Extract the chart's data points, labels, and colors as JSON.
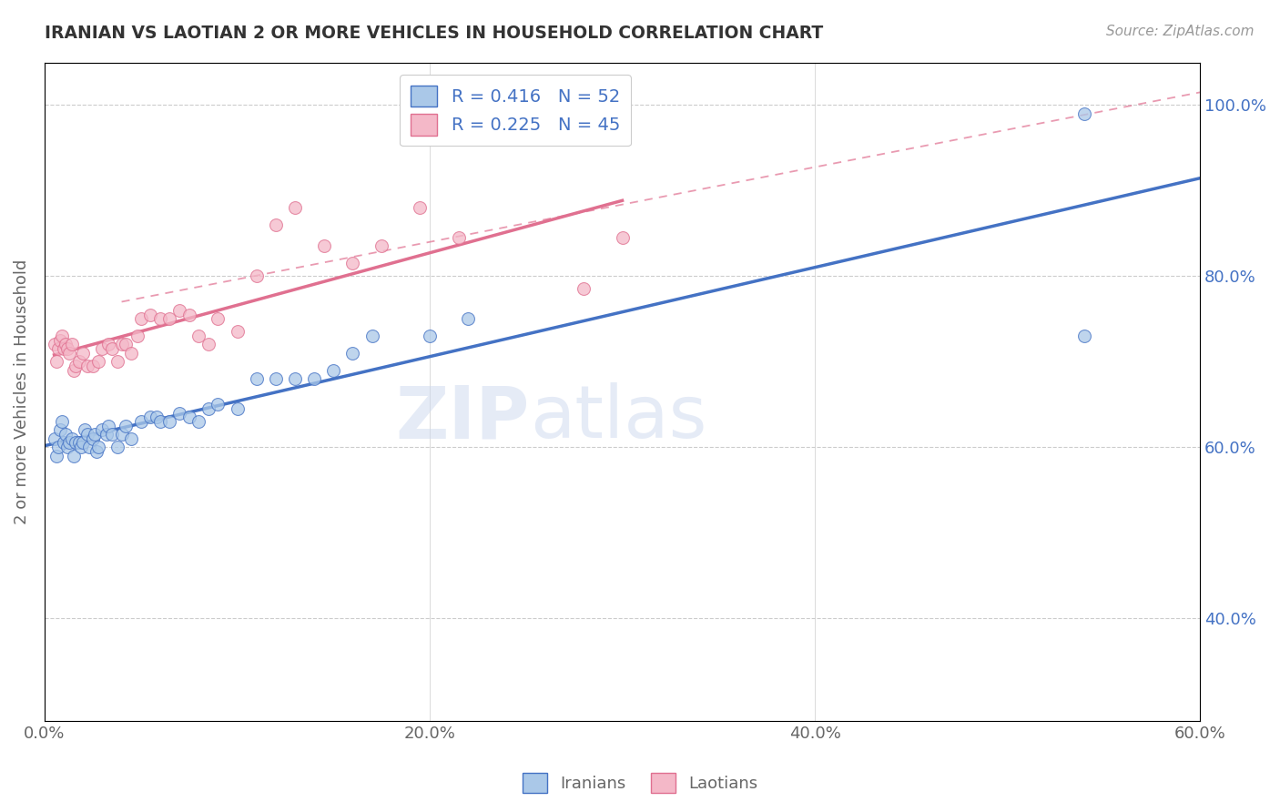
{
  "title": "IRANIAN VS LAOTIAN 2 OR MORE VEHICLES IN HOUSEHOLD CORRELATION CHART",
  "source_text": "Source: ZipAtlas.com",
  "ylabel": "2 or more Vehicles in Household",
  "xlim": [
    0.0,
    0.6
  ],
  "ylim": [
    0.28,
    1.05
  ],
  "xtick_labels": [
    "0.0%",
    "",
    "",
    "",
    "20.0%",
    "",
    "",
    "",
    "40.0%",
    "",
    "",
    "",
    "60.0%"
  ],
  "xtick_vals": [
    0.0,
    0.05,
    0.1,
    0.15,
    0.2,
    0.25,
    0.3,
    0.35,
    0.4,
    0.45,
    0.5,
    0.55,
    0.6
  ],
  "xtick_display": [
    "0.0%",
    "20.0%",
    "40.0%",
    "60.0%"
  ],
  "xtick_display_vals": [
    0.0,
    0.2,
    0.4,
    0.6
  ],
  "ytick_labels": [
    "40.0%",
    "60.0%",
    "80.0%",
    "100.0%"
  ],
  "ytick_vals": [
    0.4,
    0.6,
    0.8,
    1.0
  ],
  "watermark_zip": "ZIP",
  "watermark_atlas": "atlas",
  "legend_R_iranian": "0.416",
  "legend_N_iranian": "52",
  "legend_R_laotian": "0.225",
  "legend_N_laotian": "45",
  "color_iranian": "#aac8e8",
  "color_laotian": "#f4b8c8",
  "line_color_iranian": "#4472c4",
  "line_color_laotian": "#e07090",
  "dashed_line_color": "#e07090",
  "iranian_x": [
    0.005,
    0.006,
    0.007,
    0.008,
    0.009,
    0.01,
    0.011,
    0.012,
    0.013,
    0.014,
    0.015,
    0.016,
    0.018,
    0.019,
    0.02,
    0.021,
    0.022,
    0.023,
    0.025,
    0.026,
    0.027,
    0.028,
    0.03,
    0.032,
    0.033,
    0.035,
    0.038,
    0.04,
    0.042,
    0.045,
    0.05,
    0.055,
    0.058,
    0.06,
    0.065,
    0.07,
    0.075,
    0.08,
    0.085,
    0.09,
    0.1,
    0.11,
    0.12,
    0.13,
    0.14,
    0.15,
    0.16,
    0.17,
    0.2,
    0.22,
    0.54,
    0.54
  ],
  "iranian_y": [
    0.61,
    0.59,
    0.6,
    0.62,
    0.63,
    0.605,
    0.615,
    0.6,
    0.605,
    0.61,
    0.59,
    0.605,
    0.605,
    0.6,
    0.605,
    0.62,
    0.615,
    0.6,
    0.61,
    0.615,
    0.595,
    0.6,
    0.62,
    0.615,
    0.625,
    0.615,
    0.6,
    0.615,
    0.625,
    0.61,
    0.63,
    0.635,
    0.635,
    0.63,
    0.63,
    0.64,
    0.635,
    0.63,
    0.645,
    0.65,
    0.645,
    0.68,
    0.68,
    0.68,
    0.68,
    0.69,
    0.71,
    0.73,
    0.73,
    0.75,
    0.99,
    0.73
  ],
  "laotian_x": [
    0.005,
    0.006,
    0.007,
    0.008,
    0.009,
    0.01,
    0.011,
    0.012,
    0.013,
    0.014,
    0.015,
    0.016,
    0.018,
    0.02,
    0.022,
    0.025,
    0.028,
    0.03,
    0.033,
    0.035,
    0.038,
    0.04,
    0.042,
    0.045,
    0.048,
    0.05,
    0.055,
    0.06,
    0.065,
    0.07,
    0.075,
    0.08,
    0.085,
    0.09,
    0.1,
    0.11,
    0.12,
    0.13,
    0.145,
    0.16,
    0.175,
    0.195,
    0.215,
    0.28,
    0.3
  ],
  "laotian_y": [
    0.72,
    0.7,
    0.715,
    0.725,
    0.73,
    0.715,
    0.72,
    0.715,
    0.71,
    0.72,
    0.69,
    0.695,
    0.7,
    0.71,
    0.695,
    0.695,
    0.7,
    0.715,
    0.72,
    0.715,
    0.7,
    0.72,
    0.72,
    0.71,
    0.73,
    0.75,
    0.755,
    0.75,
    0.75,
    0.76,
    0.755,
    0.73,
    0.72,
    0.75,
    0.735,
    0.8,
    0.86,
    0.88,
    0.835,
    0.815,
    0.835,
    0.88,
    0.845,
    0.785,
    0.845
  ]
}
